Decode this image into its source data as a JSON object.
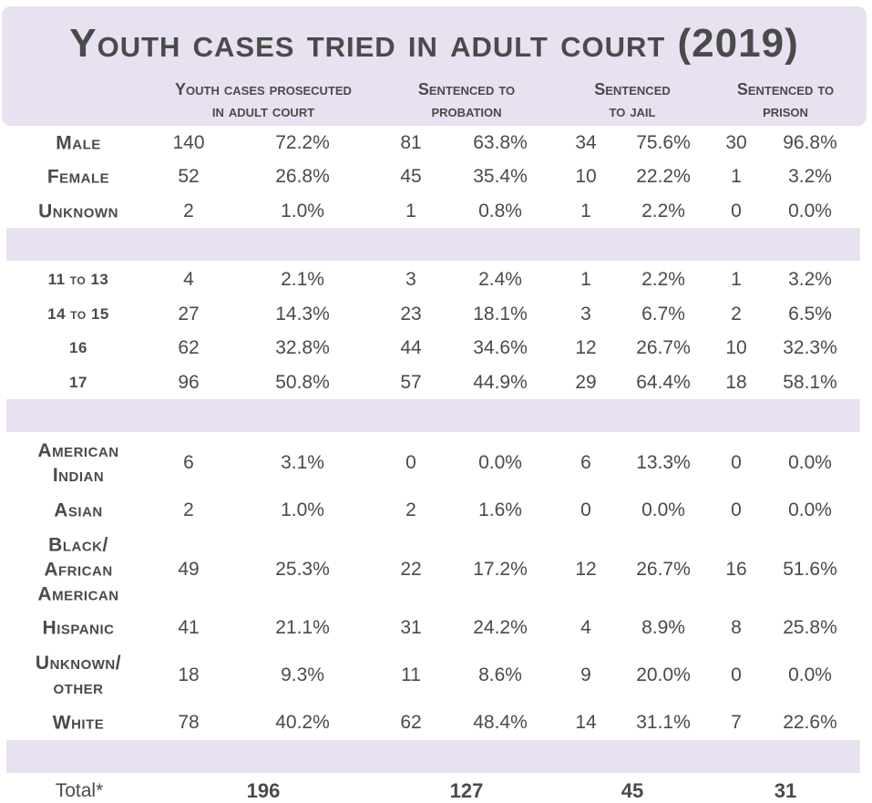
{
  "chart_data": {
    "type": "table",
    "title": "Youth cases tried in adult court (2019)",
    "columns": [
      "Youth cases prosecuted in adult court",
      "Sentenced to probation",
      "Sentenced to jail",
      "Sentenced to prison"
    ],
    "sections": [
      {
        "rows": [
          {
            "label": "Male",
            "values": [
              "140",
              "72.2%",
              "81",
              "63.8%",
              "34",
              "75.6%",
              "30",
              "96.8%"
            ]
          },
          {
            "label": "Female",
            "values": [
              "52",
              "26.8%",
              "45",
              "35.4%",
              "10",
              "22.2%",
              "1",
              "3.2%"
            ]
          },
          {
            "label": "Unknown",
            "values": [
              "2",
              "1.0%",
              "1",
              "0.8%",
              "1",
              "2.2%",
              "0",
              "0.0%"
            ]
          }
        ]
      },
      {
        "rows": [
          {
            "label": "11 to 13",
            "values": [
              "4",
              "2.1%",
              "3",
              "2.4%",
              "1",
              "2.2%",
              "1",
              "3.2%"
            ]
          },
          {
            "label": "14 to 15",
            "values": [
              "27",
              "14.3%",
              "23",
              "18.1%",
              "3",
              "6.7%",
              "2",
              "6.5%"
            ]
          },
          {
            "label": "16",
            "values": [
              "62",
              "32.8%",
              "44",
              "34.6%",
              "12",
              "26.7%",
              "10",
              "32.3%"
            ]
          },
          {
            "label": "17",
            "values": [
              "96",
              "50.8%",
              "57",
              "44.9%",
              "29",
              "64.4%",
              "18",
              "58.1%"
            ]
          }
        ]
      },
      {
        "rows": [
          {
            "label": "American Indian",
            "values": [
              "6",
              "3.1%",
              "0",
              "0.0%",
              "6",
              "13.3%",
              "0",
              "0.0%"
            ]
          },
          {
            "label": "Asian",
            "values": [
              "2",
              "1.0%",
              "2",
              "1.6%",
              "0",
              "0.0%",
              "0",
              "0.0%"
            ]
          },
          {
            "label": "Black/ African American",
            "values": [
              "49",
              "25.3%",
              "22",
              "17.2%",
              "12",
              "26.7%",
              "16",
              "51.6%"
            ]
          },
          {
            "label": "Hispanic",
            "values": [
              "41",
              "21.1%",
              "31",
              "24.2%",
              "4",
              "8.9%",
              "8",
              "25.8%"
            ]
          },
          {
            "label": "Unknown/ other",
            "values": [
              "18",
              "9.3%",
              "11",
              "8.6%",
              "9",
              "20.0%",
              "0",
              "0.0%"
            ]
          },
          {
            "label": "White",
            "values": [
              "78",
              "40.2%",
              "62",
              "48.4%",
              "14",
              "31.1%",
              "7",
              "22.6%"
            ]
          }
        ]
      }
    ],
    "total": {
      "label": "Total*",
      "values": [
        "196",
        "127",
        "45",
        "31"
      ]
    }
  },
  "colors": {
    "band": "#e7e1f0",
    "text": "#4a4a4a"
  }
}
